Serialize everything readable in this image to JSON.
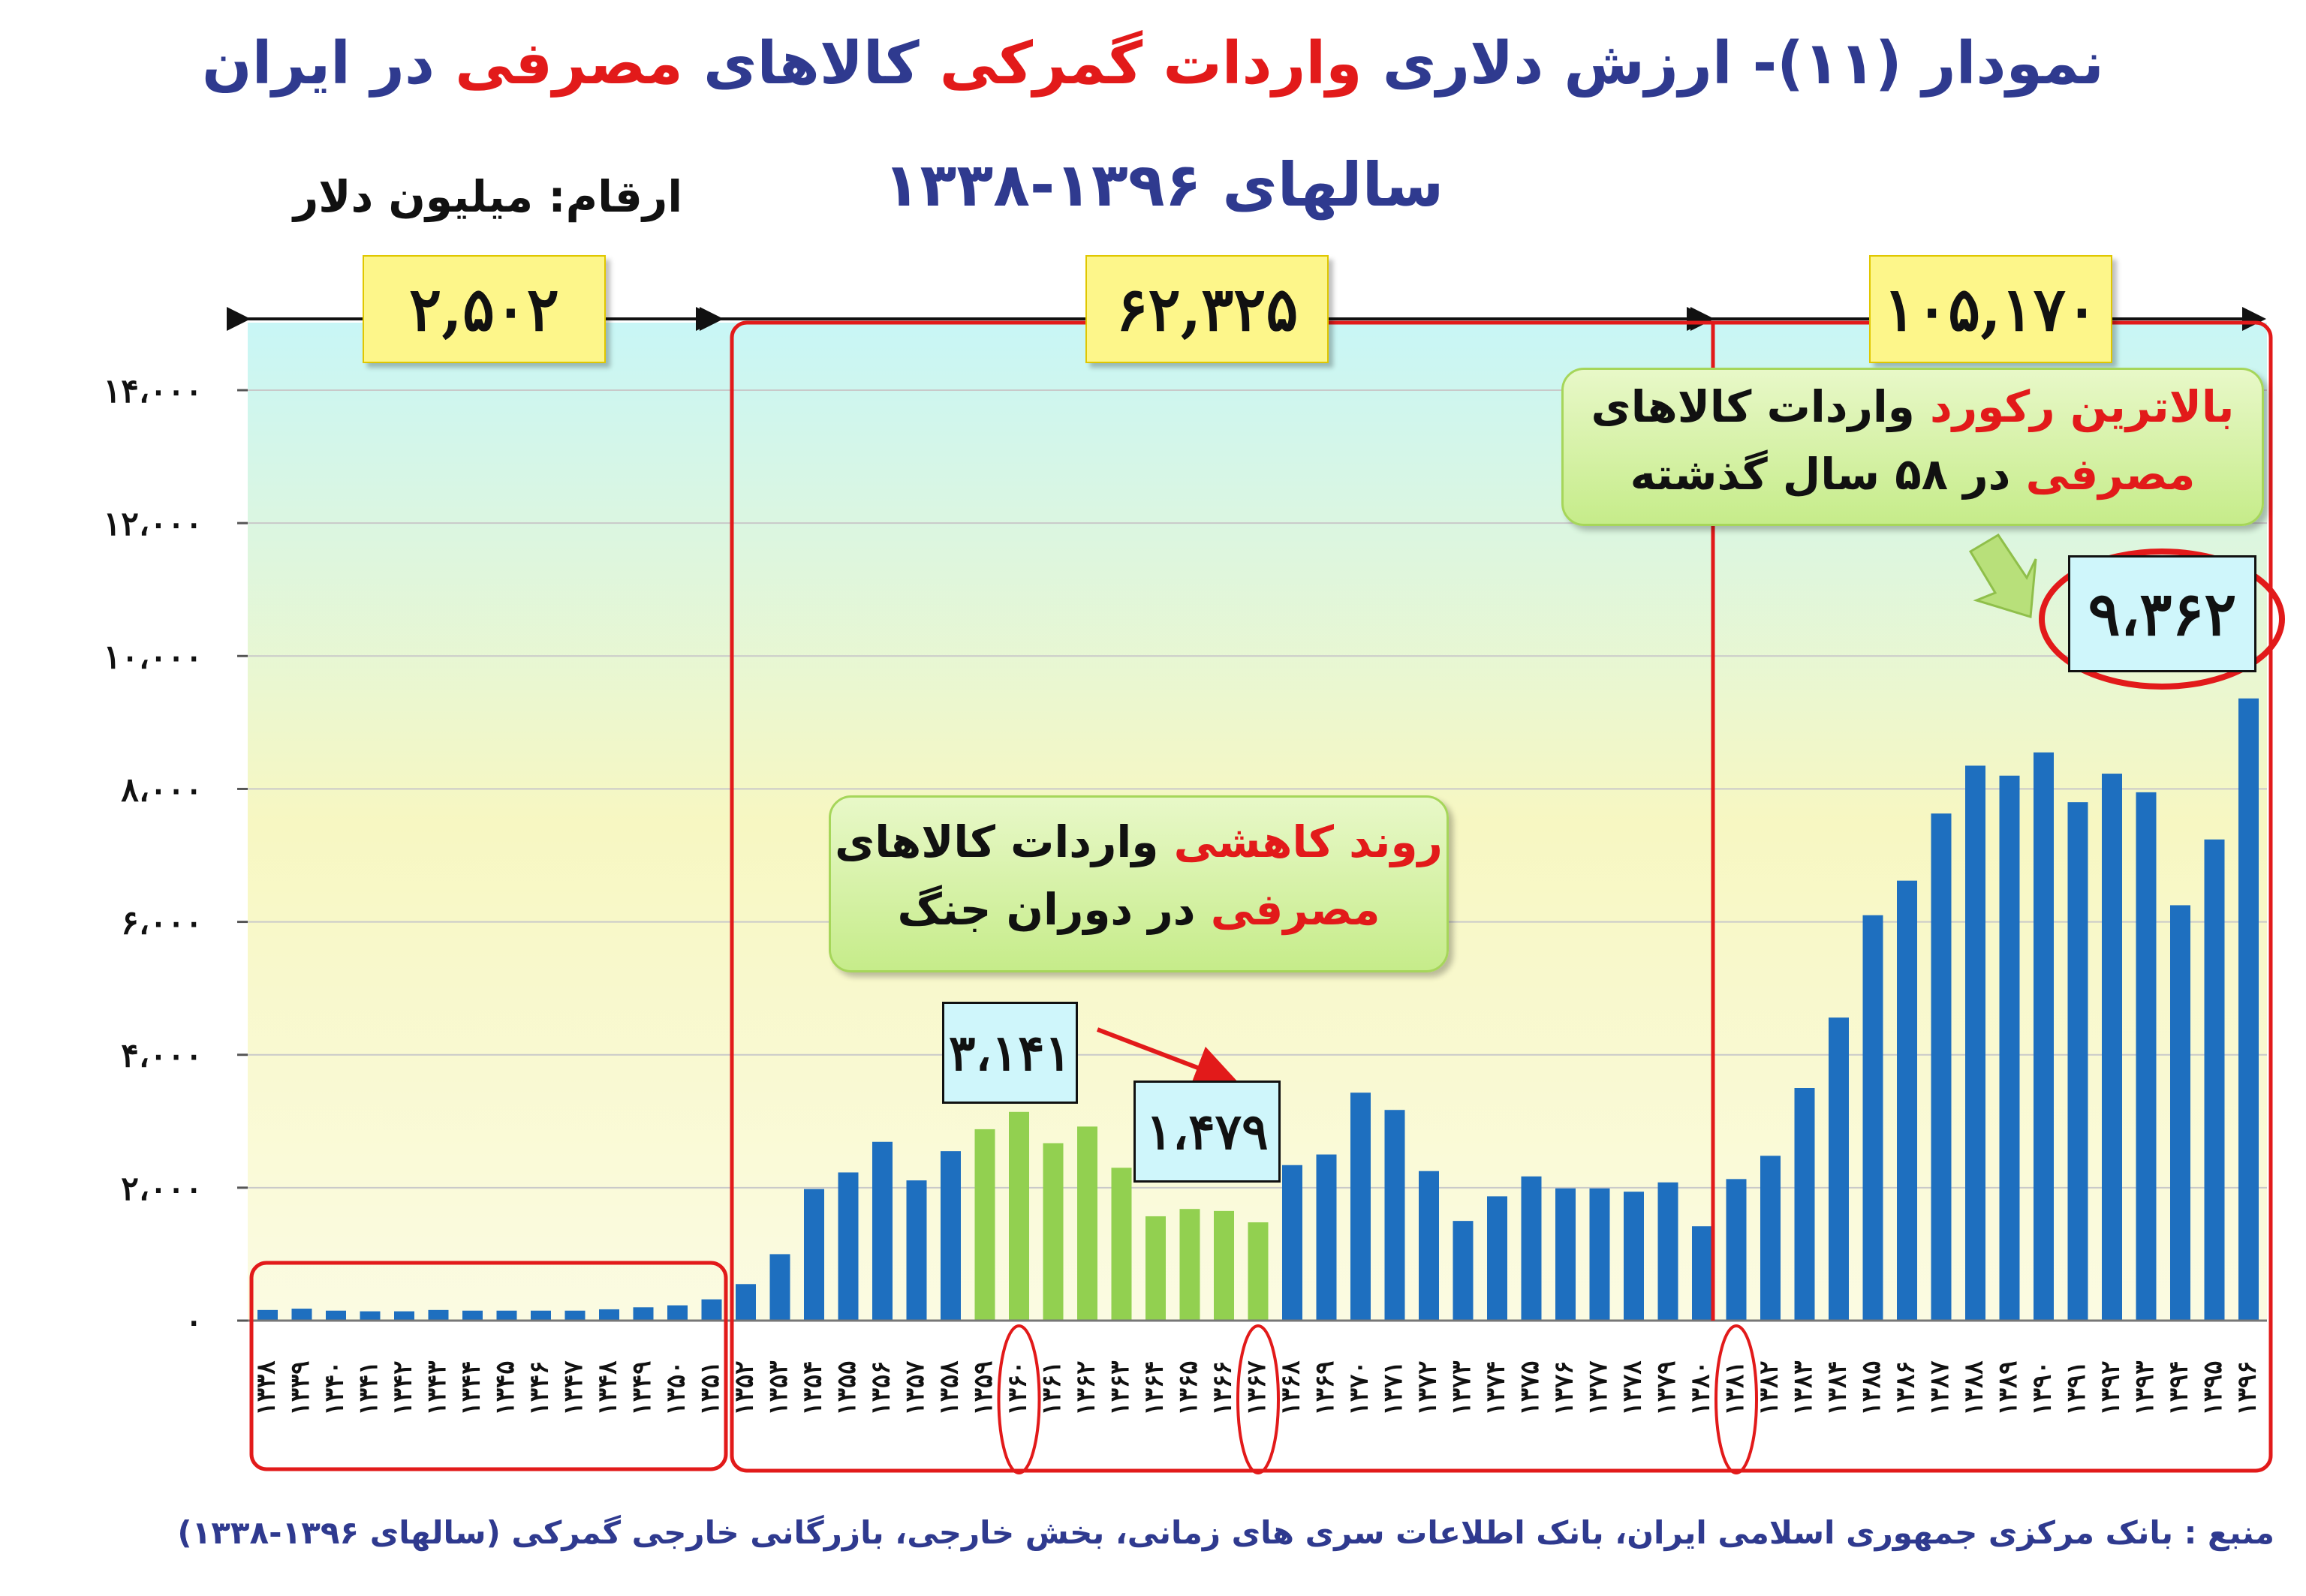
{
  "title": {
    "part1": "نمودار (۱۱)- ارزش دلاری ",
    "part2": "واردات گمرکی",
    "part3": " کالاهای ",
    "part4": "مصرفی",
    "part5": " در ایران",
    "line2": "سالهای ۱۳۹۶-۱۳۳۸"
  },
  "unit_label": "ارقام: میلیون دلار",
  "period_totals": [
    "۲,۵۰۲",
    "۶۲,۳۲۵",
    "۱۰۵,۱۷۰"
  ],
  "callout_record": {
    "red1": "بالاترین رکورد",
    "text1": " واردات کالاهای",
    "red2": "مصرفی",
    "text2": " در ۵۸ سال گذشته"
  },
  "callout_war": {
    "red1": "روند کاهشی",
    "text1": " واردات کالاهای",
    "red2": "مصرفی",
    "text2": " در دوران جنگ"
  },
  "value_labels": {
    "record": "۹،۳۶۲",
    "war_start": "۳،۱۴۱",
    "war_end": "۱،۴۷۹"
  },
  "source": "منبع : بانک مرکزی جمهوری اسلامی ایران، بانک اطلاعات سری های زمانی، بخش خارجی، بازرگانی خارجی گمرکی (سالهای ۱۳۹۶-۱۳۳۸)",
  "colors": {
    "blue_bar": "#1e6fbf",
    "green_bar": "#92d050",
    "red_frame": "#e21a1a",
    "title": "#2f3a8f"
  },
  "chart_data": {
    "type": "bar",
    "ylim": [
      0,
      14000
    ],
    "yticks": [
      0,
      2000,
      4000,
      6000,
      8000,
      10000,
      12000,
      14000
    ],
    "ytick_labels": [
      "۰",
      "۲،۰۰۰",
      "۴،۰۰۰",
      "۶،۰۰۰",
      "۸،۰۰۰",
      "۱۰،۰۰۰",
      "۱۲،۰۰۰",
      "۱۴،۰۰۰"
    ],
    "grid": true,
    "categories": [
      "۱۳۳۸",
      "۱۳۳۹",
      "۱۳۴۰",
      "۱۳۴۱",
      "۱۳۴۲",
      "۱۳۴۳",
      "۱۳۴۴",
      "۱۳۴۵",
      "۱۳۴۶",
      "۱۳۴۷",
      "۱۳۴۸",
      "۱۳۴۹",
      "۱۳۵۰",
      "۱۳۵۱",
      "۱۳۵۲",
      "۱۳۵۳",
      "۱۳۵۴",
      "۱۳۵۵",
      "۱۳۵۶",
      "۱۳۵۷",
      "۱۳۵۸",
      "۱۳۵۹",
      "۱۳۶۰",
      "۱۳۶۱",
      "۱۳۶۲",
      "۱۳۶۳",
      "۱۳۶۴",
      "۱۳۶۵",
      "۱۳۶۶",
      "۱۳۶۷",
      "۱۳۶۸",
      "۱۳۶۹",
      "۱۳۷۰",
      "۱۳۷۱",
      "۱۳۷۲",
      "۱۳۷۳",
      "۱۳۷۴",
      "۱۳۷۵",
      "۱۳۷۶",
      "۱۳۷۷",
      "۱۳۷۸",
      "۱۳۷۹",
      "۱۳۸۰",
      "۱۳۸۱",
      "۱۳۸۲",
      "۱۳۸۳",
      "۱۳۸۴",
      "۱۳۸۵",
      "۱۳۸۶",
      "۱۳۸۷",
      "۱۳۸۸",
      "۱۳۸۹",
      "۱۳۹۰",
      "۱۳۹۱",
      "۱۳۹۲",
      "۱۳۹۳",
      "۱۳۹۴",
      "۱۳۹۵",
      "۱۳۹۶"
    ],
    "values": [
      160,
      180,
      150,
      140,
      140,
      160,
      150,
      150,
      150,
      150,
      170,
      200,
      230,
      320,
      550,
      1000,
      1980,
      2230,
      2690,
      2110,
      2550,
      2880,
      3141,
      2670,
      2920,
      2300,
      1570,
      1680,
      1650,
      1479,
      2340,
      2500,
      3430,
      3170,
      2250,
      1500,
      1870,
      2170,
      1990,
      1990,
      1940,
      2080,
      1420,
      2130,
      2480,
      3500,
      4560,
      6100,
      6620,
      7630,
      8350,
      8200,
      8550,
      7800,
      8230,
      7950,
      6250,
      7240,
      9362
    ],
    "highlight_years": [
      "۱۳۵۹",
      "۱۳۶۰",
      "۱۳۶۱",
      "۱۳۶۲",
      "۱۳۶۳",
      "۱۳۶۴",
      "۱۳۶۵",
      "۱۳۶۶",
      "۱۳۶۷"
    ],
    "ringed_years": [
      "۱۳۶۰",
      "۱۳۶۷",
      "۱۳۸۱"
    ]
  }
}
